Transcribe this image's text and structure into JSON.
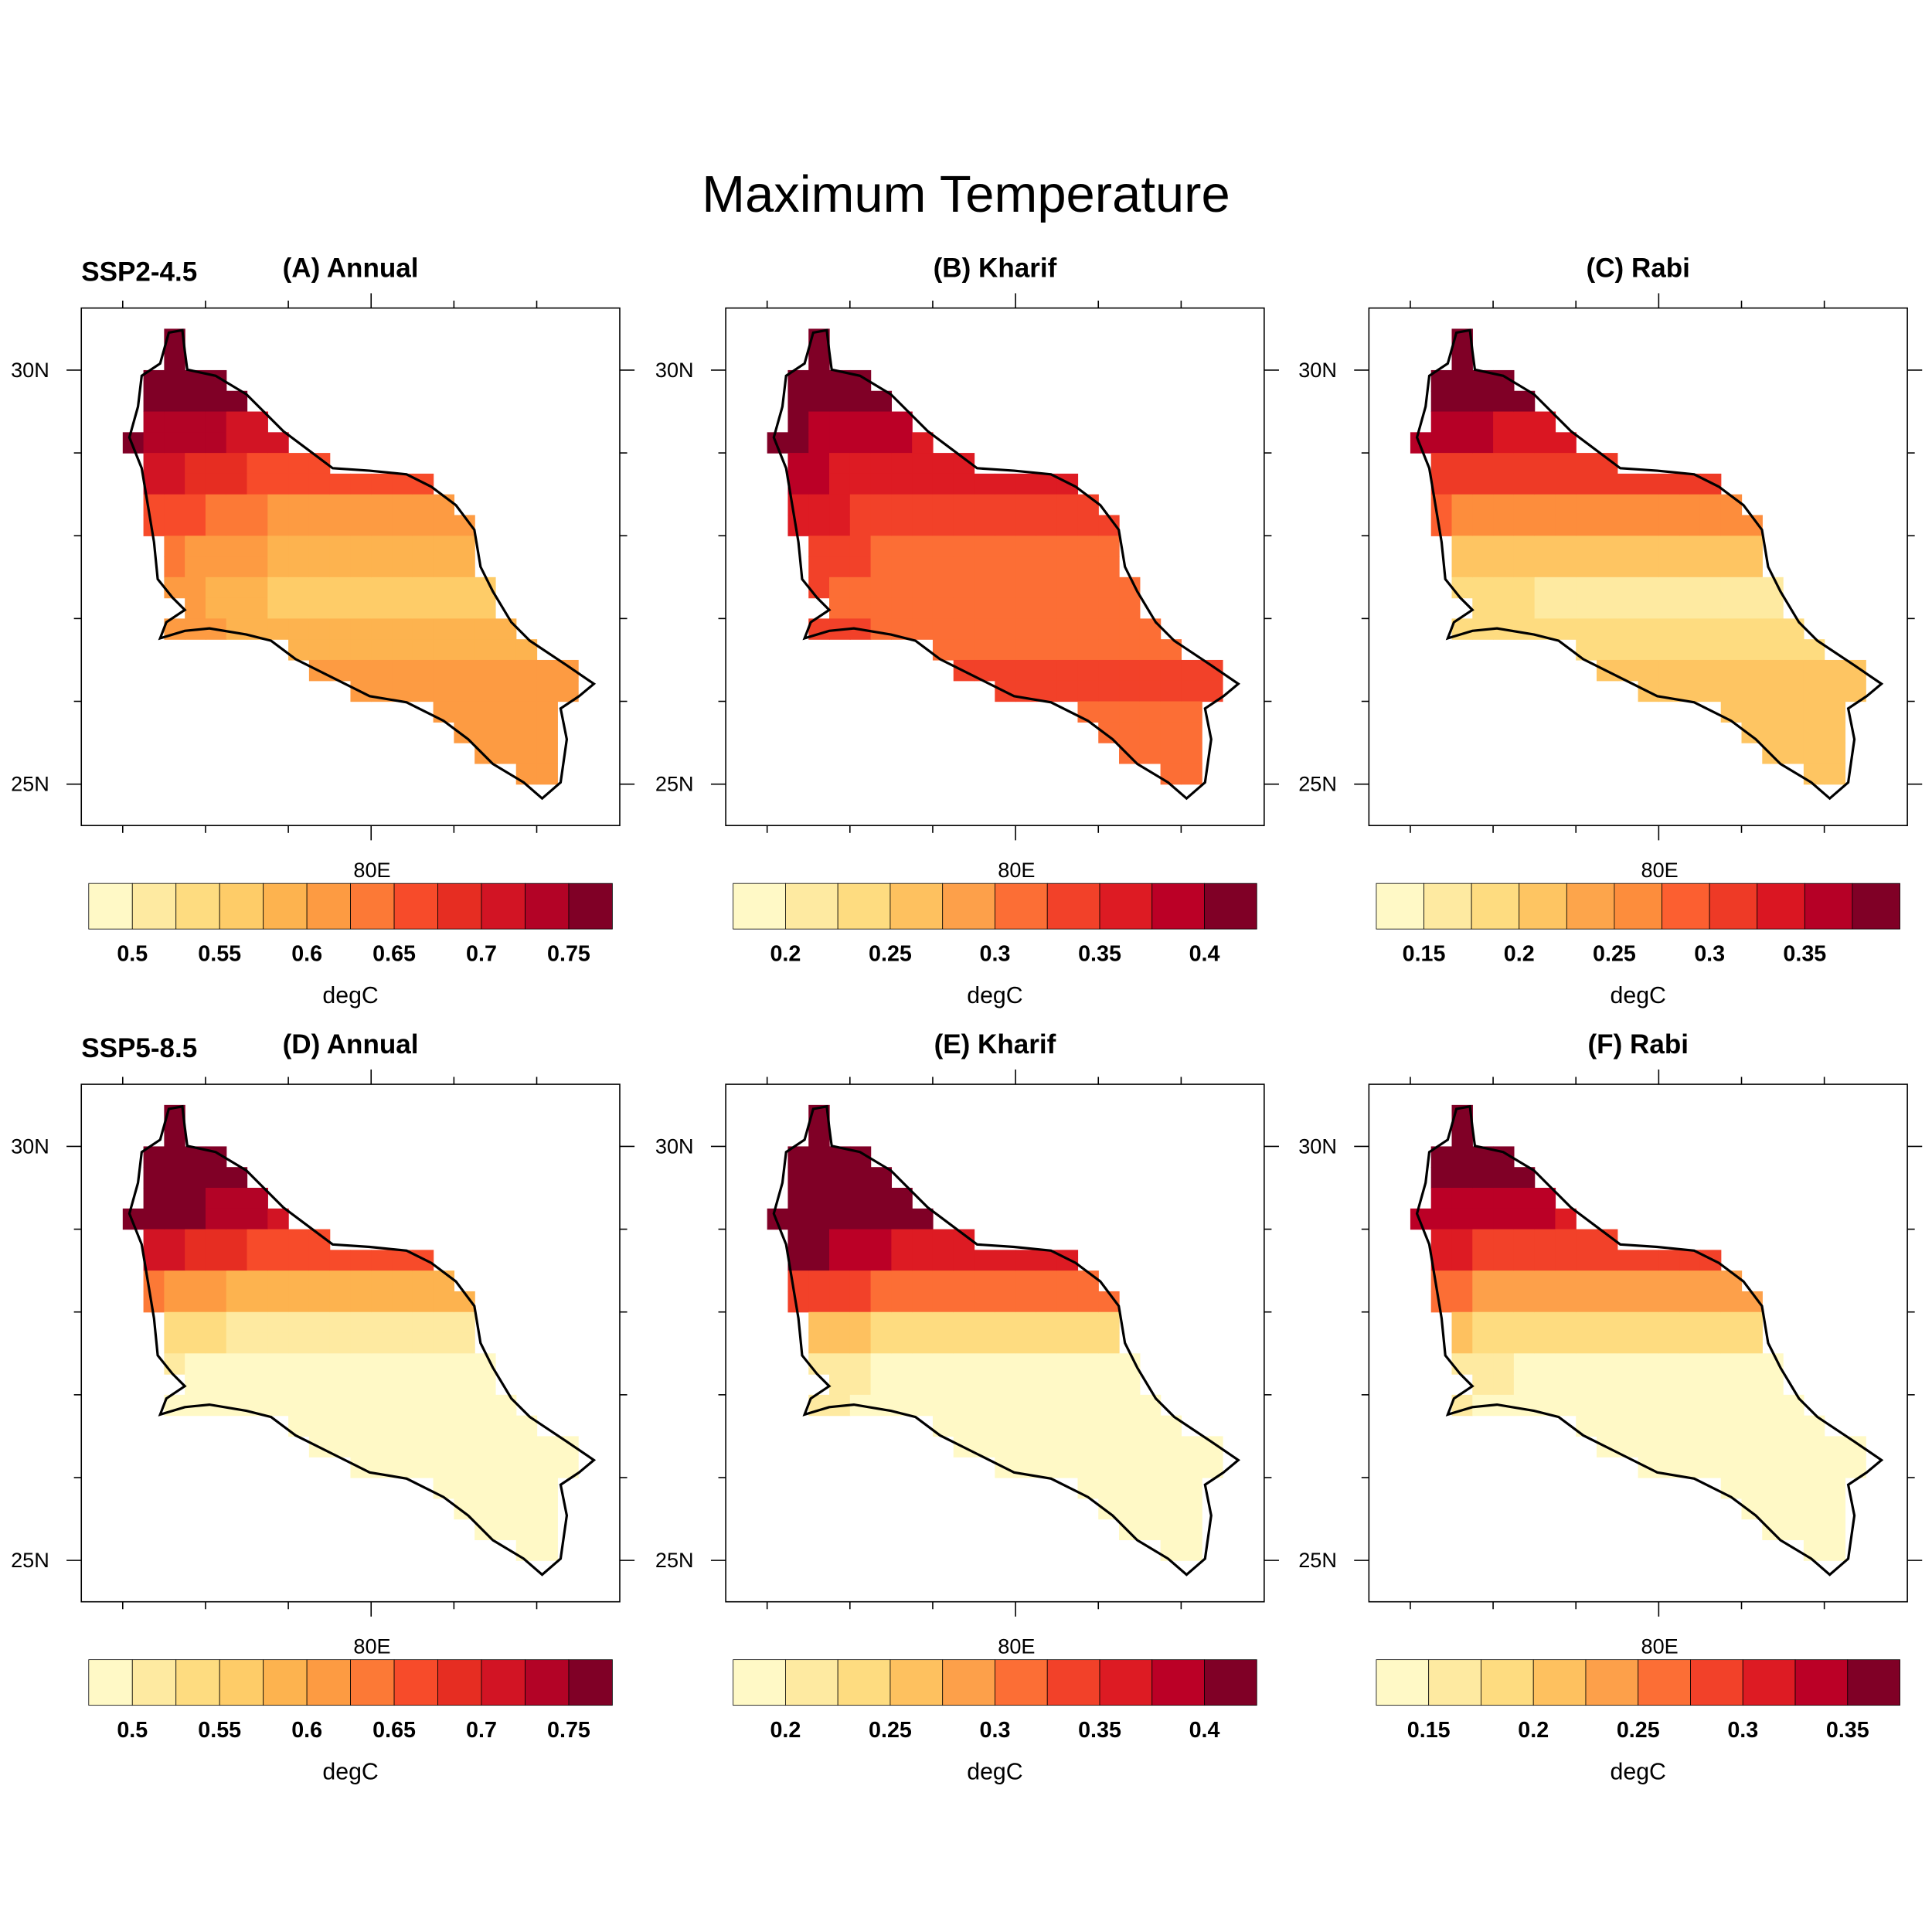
{
  "title": "Maximum Temperature",
  "row_labels": [
    "SSP2-4.5",
    "SSP5-8.5"
  ],
  "axis": {
    "lat_labels": [
      "30N",
      "25N"
    ],
    "lon_label": "80E",
    "unit": "degC"
  },
  "chart_data": [
    {
      "type": "heatmap",
      "panel": "(A) Annual",
      "scenario": "SSP2-4.5",
      "colors": [
        "#fff9c6",
        "#feeaa1",
        "#fedc80",
        "#fecc68",
        "#fdb34f",
        "#fd9b42",
        "#fc7936",
        "#f74b2a",
        "#e62d22",
        "#d21424",
        "#b30326",
        "#800026"
      ],
      "levels": [
        0.5,
        0.525,
        0.55,
        0.575,
        0.6,
        0.625,
        0.65,
        0.675,
        0.7,
        0.725,
        0.75
      ],
      "tick_labels": [
        "0.5",
        "0.55",
        "0.6",
        "0.65",
        "0.7",
        "0.75"
      ],
      "lat_bands": [
        30.25,
        29.75,
        29.25,
        28.75,
        28.25,
        27.75,
        27.25,
        26.75,
        26.25,
        25.75,
        25.25,
        24.75
      ],
      "band_values": [
        0.78,
        0.74,
        0.7,
        0.66,
        0.62,
        0.59,
        0.57,
        0.58,
        0.61,
        0.61,
        0.6,
        0.6
      ],
      "west_gradient_per_deg": 0.03
    },
    {
      "type": "heatmap",
      "panel": "(B) Kharif",
      "scenario": "SSP2-4.5",
      "colors": [
        "#fff9c6",
        "#feeaa1",
        "#fedc80",
        "#fec15f",
        "#fda04a",
        "#fc6e35",
        "#f24129",
        "#dd1b23",
        "#bb0026",
        "#800026"
      ],
      "levels": [
        0.2,
        0.225,
        0.25,
        0.275,
        0.3,
        0.325,
        0.35,
        0.375,
        0.4
      ],
      "tick_labels": [
        "0.2",
        "0.25",
        "0.3",
        "0.35",
        "0.4"
      ],
      "lat_bands": [
        30.25,
        29.75,
        29.25,
        28.75,
        28.25,
        27.75,
        27.25,
        26.75,
        26.25,
        25.75,
        25.25,
        24.75
      ],
      "band_values": [
        0.42,
        0.4,
        0.37,
        0.35,
        0.33,
        0.31,
        0.3,
        0.31,
        0.33,
        0.32,
        0.31,
        0.3
      ],
      "west_gradient_per_deg": 0.02
    },
    {
      "type": "heatmap",
      "panel": "(C) Rabi",
      "scenario": "SSP2-4.5",
      "colors": [
        "#fff9c6",
        "#feeaa1",
        "#fedc80",
        "#fec562",
        "#fda54b",
        "#fd8d3c",
        "#fc5f30",
        "#ee3a26",
        "#da1622",
        "#b60026",
        "#800026"
      ],
      "levels": [
        0.15,
        0.175,
        0.2,
        0.225,
        0.25,
        0.275,
        0.3,
        0.325,
        0.35,
        0.375
      ],
      "tick_labels": [
        "0.15",
        "0.2",
        "0.25",
        "0.3",
        "0.35"
      ],
      "lat_bands": [
        30.25,
        29.75,
        29.25,
        28.75,
        28.25,
        27.75,
        27.25,
        26.75,
        26.25,
        25.75,
        25.25,
        24.75
      ],
      "band_values": [
        0.39,
        0.37,
        0.34,
        0.3,
        0.26,
        0.21,
        0.17,
        0.18,
        0.21,
        0.22,
        0.21,
        0.21
      ],
      "west_gradient_per_deg": 0.01
    },
    {
      "type": "heatmap",
      "panel": "(D) Annual",
      "scenario": "SSP5-8.5",
      "colors": [
        "#fff9c6",
        "#feeaa1",
        "#fedc80",
        "#fecc68",
        "#fdb34f",
        "#fd9b42",
        "#fc7936",
        "#f74b2a",
        "#e62d22",
        "#d21424",
        "#b30326",
        "#800026"
      ],
      "levels": [
        0.5,
        0.525,
        0.55,
        0.575,
        0.6,
        0.625,
        0.65,
        0.675,
        0.7,
        0.725,
        0.75
      ],
      "tick_labels": [
        "0.5",
        "0.55",
        "0.6",
        "0.65",
        "0.7",
        "0.75"
      ],
      "lat_bands": [
        30.25,
        29.75,
        29.25,
        28.75,
        28.25,
        27.75,
        27.25,
        26.75,
        26.25,
        25.75,
        25.25,
        24.75
      ],
      "band_values": [
        0.8,
        0.76,
        0.72,
        0.66,
        0.58,
        0.5,
        0.46,
        0.45,
        0.45,
        0.45,
        0.45,
        0.45
      ],
      "west_gradient_per_deg": 0.03
    },
    {
      "type": "heatmap",
      "panel": "(E) Kharif",
      "scenario": "SSP5-8.5",
      "colors": [
        "#fff9c6",
        "#feeaa1",
        "#fedc80",
        "#fec15f",
        "#fda04a",
        "#fc6e35",
        "#f24129",
        "#dd1b23",
        "#bb0026",
        "#800026"
      ],
      "levels": [
        0.2,
        0.225,
        0.25,
        0.275,
        0.3,
        0.325,
        0.35,
        0.375,
        0.4
      ],
      "tick_labels": [
        "0.2",
        "0.25",
        "0.3",
        "0.35",
        "0.4"
      ],
      "lat_bands": [
        30.25,
        29.75,
        29.25,
        28.75,
        28.25,
        27.75,
        27.25,
        26.75,
        26.25,
        25.75,
        25.25,
        24.75
      ],
      "band_values": [
        0.45,
        0.43,
        0.4,
        0.36,
        0.3,
        0.23,
        0.18,
        0.17,
        0.17,
        0.17,
        0.17,
        0.17
      ],
      "west_gradient_per_deg": 0.03
    },
    {
      "type": "heatmap",
      "panel": "(F) Rabi",
      "scenario": "SSP5-8.5",
      "colors": [
        "#fff9c6",
        "#feeaa1",
        "#fedc80",
        "#fec15f",
        "#fda04a",
        "#fc6e35",
        "#f24129",
        "#dd1b23",
        "#bb0026",
        "#800026"
      ],
      "levels": [
        0.15,
        0.175,
        0.2,
        0.225,
        0.25,
        0.275,
        0.3,
        0.325,
        0.35
      ],
      "tick_labels": [
        "0.15",
        "0.2",
        "0.25",
        "0.3",
        "0.35"
      ],
      "lat_bands": [
        30.25,
        29.75,
        29.25,
        28.75,
        28.25,
        27.75,
        27.25,
        26.75,
        26.25,
        25.75,
        25.25,
        24.75
      ],
      "band_values": [
        0.38,
        0.35,
        0.32,
        0.28,
        0.23,
        0.18,
        0.14,
        0.13,
        0.13,
        0.13,
        0.13,
        0.13
      ],
      "west_gradient_per_deg": 0.015
    }
  ]
}
